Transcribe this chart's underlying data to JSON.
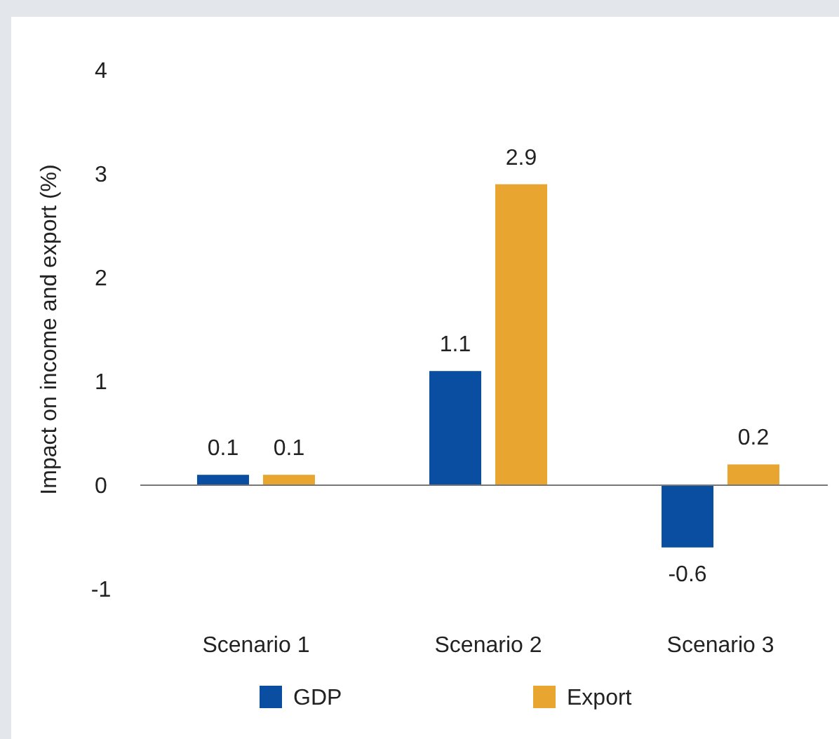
{
  "chart_data": {
    "type": "bar",
    "ylabel": "Impact on income and export (%)",
    "categories": [
      "Scenario 1",
      "Scenario 2",
      "Scenario 3"
    ],
    "series": [
      {
        "name": "GDP",
        "color": "#0a4ea2",
        "values": [
          0.1,
          1.1,
          -0.6
        ]
      },
      {
        "name": "Export",
        "color": "#e8a530",
        "values": [
          0.1,
          2.9,
          0.2
        ]
      }
    ],
    "ylim": [
      -1,
      4
    ],
    "yticks": [
      -1,
      0,
      1,
      2,
      3,
      4
    ],
    "data_labels": true,
    "legend": "bottom"
  }
}
